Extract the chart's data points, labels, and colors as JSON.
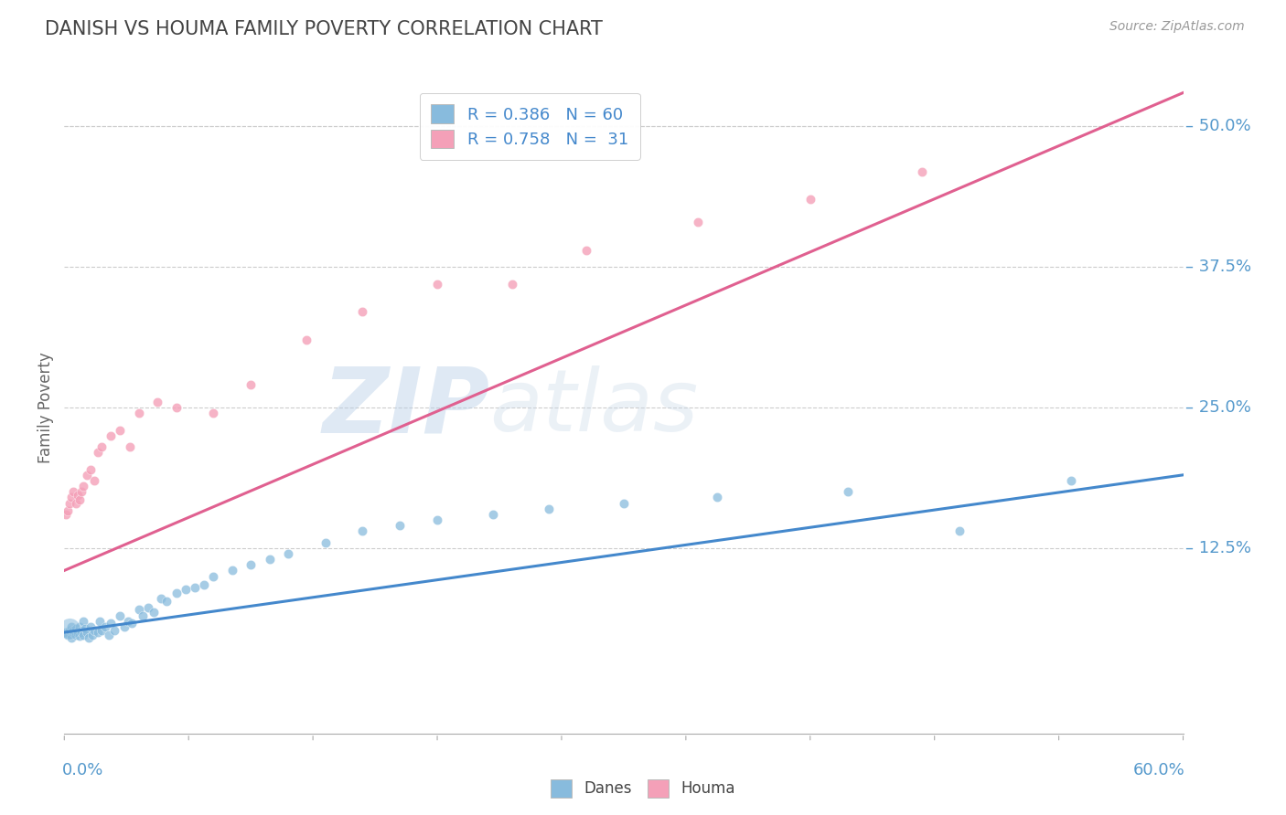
{
  "title": "DANISH VS HOUMA FAMILY POVERTY CORRELATION CHART",
  "source": "Source: ZipAtlas.com",
  "ylabel": "Family Poverty",
  "ytick_vals": [
    0.125,
    0.25,
    0.375,
    0.5
  ],
  "ytick_labels": [
    "12.5%",
    "25.0%",
    "37.5%",
    "50.0%"
  ],
  "xlim": [
    0.0,
    0.6
  ],
  "ylim": [
    -0.04,
    0.54
  ],
  "watermark1": "ZIP",
  "watermark2": "atlas",
  "danes_color": "#88bbdd",
  "houma_color": "#f4a0b8",
  "danes_line_color": "#4488cc",
  "houma_line_color": "#e06090",
  "background_color": "#ffffff",
  "grid_color": "#cccccc",
  "title_color": "#444444",
  "axis_label_color": "#5599cc",
  "legend_text_color": "#4488cc",
  "danes_x": [
    0.001,
    0.002,
    0.003,
    0.004,
    0.004,
    0.005,
    0.005,
    0.006,
    0.006,
    0.007,
    0.007,
    0.008,
    0.008,
    0.009,
    0.009,
    0.01,
    0.01,
    0.011,
    0.012,
    0.013,
    0.014,
    0.015,
    0.016,
    0.018,
    0.019,
    0.02,
    0.022,
    0.024,
    0.025,
    0.027,
    0.03,
    0.032,
    0.034,
    0.036,
    0.04,
    0.042,
    0.045,
    0.048,
    0.052,
    0.055,
    0.06,
    0.065,
    0.07,
    0.075,
    0.08,
    0.09,
    0.1,
    0.11,
    0.12,
    0.14,
    0.16,
    0.18,
    0.2,
    0.23,
    0.26,
    0.3,
    0.35,
    0.42,
    0.48,
    0.54
  ],
  "danes_y": [
    0.05,
    0.048,
    0.052,
    0.045,
    0.055,
    0.05,
    0.052,
    0.048,
    0.053,
    0.051,
    0.049,
    0.055,
    0.047,
    0.052,
    0.05,
    0.048,
    0.06,
    0.053,
    0.05,
    0.045,
    0.055,
    0.048,
    0.052,
    0.05,
    0.06,
    0.052,
    0.055,
    0.048,
    0.058,
    0.052,
    0.065,
    0.055,
    0.06,
    0.058,
    0.07,
    0.065,
    0.072,
    0.068,
    0.08,
    0.078,
    0.085,
    0.088,
    0.09,
    0.092,
    0.1,
    0.105,
    0.11,
    0.115,
    0.12,
    0.13,
    0.14,
    0.145,
    0.15,
    0.155,
    0.16,
    0.165,
    0.17,
    0.175,
    0.14,
    0.185
  ],
  "houma_x": [
    0.001,
    0.002,
    0.003,
    0.004,
    0.005,
    0.006,
    0.007,
    0.008,
    0.009,
    0.01,
    0.012,
    0.014,
    0.016,
    0.018,
    0.02,
    0.025,
    0.03,
    0.035,
    0.04,
    0.05,
    0.06,
    0.08,
    0.1,
    0.13,
    0.16,
    0.2,
    0.24,
    0.28,
    0.34,
    0.4,
    0.46
  ],
  "houma_y": [
    0.155,
    0.158,
    0.165,
    0.17,
    0.175,
    0.165,
    0.172,
    0.168,
    0.175,
    0.18,
    0.19,
    0.195,
    0.185,
    0.21,
    0.215,
    0.225,
    0.23,
    0.215,
    0.245,
    0.255,
    0.25,
    0.245,
    0.27,
    0.31,
    0.335,
    0.36,
    0.36,
    0.39,
    0.415,
    0.435,
    0.46
  ],
  "danes_line_x": [
    0.0,
    0.6
  ],
  "danes_line_y": [
    0.05,
    0.19
  ],
  "houma_line_x": [
    0.0,
    0.6
  ],
  "houma_line_y": [
    0.105,
    0.53
  ]
}
